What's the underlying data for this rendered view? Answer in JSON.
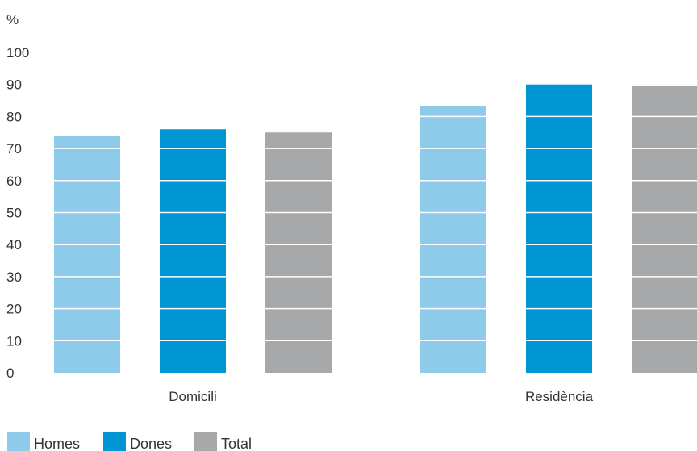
{
  "chart_data": {
    "type": "bar",
    "unit_label": "%",
    "categories": [
      "Domicili",
      "Residència"
    ],
    "series": [
      {
        "name": "Homes",
        "color": "#8ecbea",
        "values": [
          74,
          83.3
        ]
      },
      {
        "name": "Dones",
        "color": "#0095d3",
        "values": [
          76,
          90
        ]
      },
      {
        "name": "Total",
        "color": "#a7a8aa",
        "values": [
          75,
          89.5
        ]
      }
    ],
    "ylim": [
      0,
      100
    ],
    "yticks": [
      0,
      10,
      20,
      30,
      40,
      50,
      60,
      70,
      80,
      90,
      100
    ],
    "grid": "white lines across bars",
    "legend_position": "bottom-left"
  }
}
